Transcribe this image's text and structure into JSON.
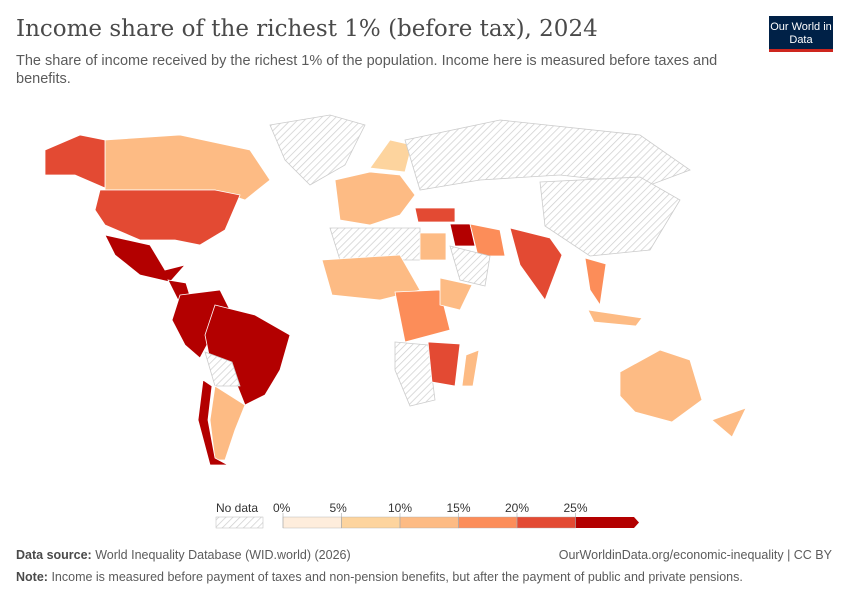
{
  "header": {
    "title": "Income share of the richest 1% (before tax), 2024",
    "subtitle": "The share of income received by the richest 1% of the population. Income here is measured before taxes and benefits.",
    "logo_text": "Our World in Data"
  },
  "chart_data": {
    "type": "choropleth-map",
    "title": "Income share of the richest 1% (before tax), 2024",
    "year": 2024,
    "legend": {
      "no_data_label": "No data",
      "tick_labels": [
        "0%",
        "5%",
        "10%",
        "15%",
        "20%",
        "25%"
      ],
      "bins": [
        {
          "range": [
            0,
            5
          ],
          "color": "#feeddc"
        },
        {
          "range": [
            5,
            10
          ],
          "color": "#fdd49e"
        },
        {
          "range": [
            10,
            15
          ],
          "color": "#fdbb84"
        },
        {
          "range": [
            15,
            20
          ],
          "color": "#fc8d59"
        },
        {
          "range": [
            20,
            25
          ],
          "color": "#e34a33"
        },
        {
          "range": [
            25,
            null
          ],
          "color": "#b30000"
        }
      ],
      "no_data_color": "#e0e0e0",
      "placement": "bottom-center"
    },
    "regions": [
      {
        "name": "Greenland",
        "bin": null
      },
      {
        "name": "Canada",
        "bin": "10-15%"
      },
      {
        "name": "Alaska (United States)",
        "bin": "20-25%"
      },
      {
        "name": "United States",
        "bin": "20-25%"
      },
      {
        "name": "Mexico",
        "bin": "25%+"
      },
      {
        "name": "Central America",
        "bin": "25%+"
      },
      {
        "name": "Colombia / Venezuela / Peru",
        "bin": "25%+"
      },
      {
        "name": "Brazil",
        "bin": "25%+"
      },
      {
        "name": "Bolivia / Paraguay",
        "bin": null
      },
      {
        "name": "Argentina",
        "bin": "10-15%"
      },
      {
        "name": "Chile",
        "bin": "25%+"
      },
      {
        "name": "Western Europe",
        "bin": "10-15%"
      },
      {
        "name": "Scandinavia",
        "bin": "5-10%"
      },
      {
        "name": "Russia",
        "bin": null
      },
      {
        "name": "Turkey",
        "bin": "20-25%"
      },
      {
        "name": "Iraq",
        "bin": "25%+"
      },
      {
        "name": "Iran",
        "bin": "15-20%"
      },
      {
        "name": "Arabian Peninsula",
        "bin": null
      },
      {
        "name": "North Africa",
        "bin": null
      },
      {
        "name": "Egypt",
        "bin": "10-15%"
      },
      {
        "name": "West Africa",
        "bin": "10-15%"
      },
      {
        "name": "Central Africa",
        "bin": "15-20%"
      },
      {
        "name": "Ethiopia",
        "bin": "10-15%"
      },
      {
        "name": "Southern Africa",
        "bin": null
      },
      {
        "name": "Mozambique / Zimbabwe",
        "bin": "20-25%"
      },
      {
        "name": "Madagascar",
        "bin": "10-15%"
      },
      {
        "name": "China",
        "bin": null
      },
      {
        "name": "India",
        "bin": "20-25%"
      },
      {
        "name": "Southeast Asia",
        "bin": "15-20%"
      },
      {
        "name": "Indonesia",
        "bin": "10-15%"
      },
      {
        "name": "Australia",
        "bin": "10-15%"
      },
      {
        "name": "New Zealand",
        "bin": "10-15%"
      }
    ]
  },
  "footer": {
    "source_label": "Data source:",
    "source": "World Inequality Database (WID.world) (2026)",
    "url": "OurWorldinData.org/economic-inequality | CC BY",
    "note_label": "Note:",
    "note": "Income is measured before payment of taxes and non-pension benefits, but after the payment of public and private pensions."
  }
}
